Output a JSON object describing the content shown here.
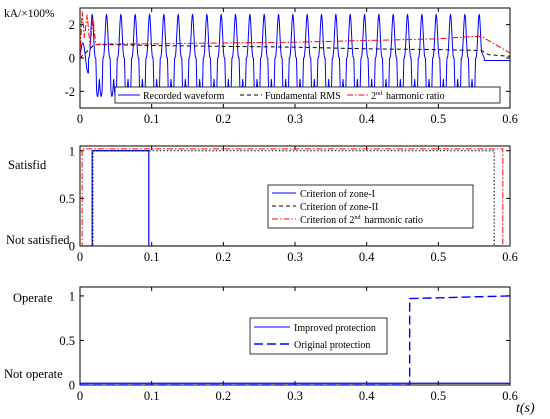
{
  "chart_data": [
    {
      "type": "line",
      "ylabel": "kA/×100%",
      "xlim": [
        0,
        0.6
      ],
      "ylim": [
        -3,
        3
      ],
      "xticks": [
        "0",
        "0.1",
        "0.2",
        "0.3",
        "0.4",
        "0.5",
        "0.6"
      ],
      "yticks": [
        "-2",
        "0",
        "2"
      ],
      "legend_position": "bottom",
      "series": [
        {
          "name": "Recorded waveform",
          "color": "#0000ff",
          "style": "solid",
          "description_values": {
            "frequency_hz": 50,
            "peak_positive": 2.6,
            "peak_negative": -2.3,
            "cutoff_time": 0.56
          }
        },
        {
          "name": "Fundamental RMS",
          "color": "#000000",
          "style": "dashed",
          "x": [
            0,
            0.02,
            0.05,
            0.1,
            0.2,
            0.3,
            0.4,
            0.5,
            0.56,
            0.57,
            0.6
          ],
          "y": [
            0,
            0.8,
            0.8,
            0.75,
            0.7,
            0.65,
            0.55,
            0.5,
            0.45,
            0.2,
            0.1
          ]
        },
        {
          "name": "2nd harmonic ratio",
          "color": "#ff0000",
          "style": "dashdot",
          "x": [
            0,
            0.003,
            0.006,
            0.01,
            0.014,
            0.018,
            0.022,
            0.03,
            0.05,
            0.1,
            0.2,
            0.3,
            0.4,
            0.5,
            0.55,
            0.56,
            0.58,
            0.6
          ],
          "y": [
            0,
            2.8,
            1.2,
            2.6,
            0.7,
            2.4,
            0.8,
            0.85,
            0.85,
            0.85,
            0.9,
            0.95,
            1.05,
            1.15,
            1.3,
            1.3,
            0.8,
            0.3
          ]
        }
      ]
    },
    {
      "type": "line",
      "xlim": [
        0,
        0.6
      ],
      "ylim": [
        0,
        1.05
      ],
      "xticks": [
        "0",
        "0.1",
        "0.2",
        "0.3",
        "0.4",
        "0.5",
        "0.6"
      ],
      "yticks": [
        "0",
        "0.5",
        "1"
      ],
      "ylabels_text": [
        "Satisfid",
        "Not satisfied"
      ],
      "legend_position": "center-right",
      "series": [
        {
          "name": "Criterion of zone-I",
          "color": "#0000ff",
          "style": "solid",
          "x": [
            0,
            0.017,
            0.017,
            0.096,
            0.096,
            0.6
          ],
          "y": [
            0,
            0,
            1,
            1,
            0,
            0
          ]
        },
        {
          "name": "Criterion of zone-II",
          "color": "#000000",
          "style": "dashed",
          "x": [
            0,
            0.018,
            0.018,
            0.578,
            0.578,
            0.6
          ],
          "y": [
            0,
            0,
            1,
            1,
            0,
            0
          ]
        },
        {
          "name": "Criterion of 2nd harmonic ratio",
          "color": "#ff0000",
          "style": "dashdot",
          "x": [
            0,
            0.003,
            0.003,
            0.59,
            0.59,
            0.6
          ],
          "y": [
            0,
            0,
            1.02,
            1.02,
            0,
            0
          ]
        }
      ]
    },
    {
      "type": "line",
      "xlabel": "t(s)",
      "xlim": [
        0,
        0.6
      ],
      "ylim": [
        0,
        1.1
      ],
      "xticks": [
        "0",
        "0.1",
        "0.2",
        "0.3",
        "0.4",
        "0.5",
        "0.6"
      ],
      "yticks": [
        "0",
        "0.5",
        "1"
      ],
      "ylabels_text": [
        "Operate",
        "Not operate"
      ],
      "legend_position": "center-right",
      "series": [
        {
          "name": "Improved protection",
          "color": "#0000ff",
          "style": "solid",
          "x": [
            0,
            0.6
          ],
          "y": [
            0.02,
            0.02
          ]
        },
        {
          "name": "Original protection",
          "color": "#0000ff",
          "style": "dashed",
          "x": [
            0,
            0.46,
            0.46,
            0.6
          ],
          "y": [
            0,
            0,
            0.97,
            1.0
          ]
        }
      ]
    }
  ],
  "panel1": {
    "legend_waveform": "Recorded waveform",
    "legend_rms": "Fundamental RMS",
    "legend_harm_sup": "nd",
    "legend_harm_num": "2",
    "legend_harm_rest": "harmonic ratio"
  },
  "panel2": {
    "label_satisfied": "Satisfid",
    "label_not_satisfied": "Not satisfied",
    "legend_zone1": "Criterion of zone-I",
    "legend_zone2": "Criterion of zone-II",
    "legend_harm_pre": "Criterion of 2",
    "legend_harm_sup": "nd",
    "legend_harm_rest": "harmonic ratio"
  },
  "panel3": {
    "label_operate": "Operate",
    "label_not_operate": "Not operate",
    "legend_improved": "Improved protection",
    "legend_original": "Original protection"
  }
}
